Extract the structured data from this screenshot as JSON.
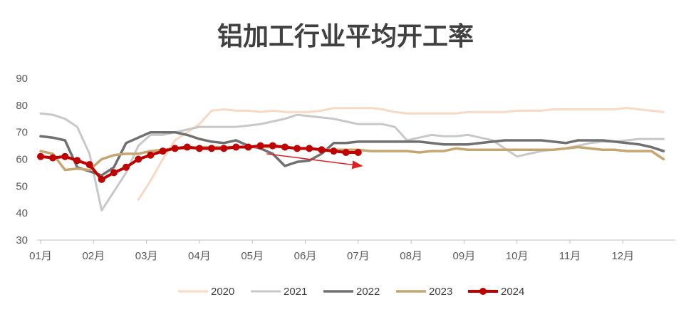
{
  "chart_data": {
    "type": "line",
    "title": "铝加工行业平均开工率",
    "xlabel": "",
    "ylabel": "",
    "ylim": [
      30,
      90
    ],
    "y_ticks": [
      30,
      40,
      50,
      60,
      70,
      80,
      90
    ],
    "x_ticks": [
      "01月",
      "02月",
      "03月",
      "04月",
      "05月",
      "06月",
      "07月",
      "08月",
      "09月",
      "10月",
      "11月",
      "12月"
    ],
    "x_range_weeks": [
      1,
      52
    ],
    "grid": false,
    "legend_position": "bottom",
    "annotation": "downward arrow from early May to early July (2024 trend)",
    "series": [
      {
        "name": "2020",
        "color": "#f8d9c4",
        "width": 3,
        "markers": false,
        "points": [
          [
            9,
            45
          ],
          [
            10,
            52
          ],
          [
            11,
            60
          ],
          [
            12,
            67
          ],
          [
            13,
            70
          ],
          [
            14,
            73
          ],
          [
            15,
            78
          ],
          [
            16,
            78.5
          ],
          [
            17,
            78
          ],
          [
            18,
            78
          ],
          [
            19,
            77.5
          ],
          [
            20,
            78
          ],
          [
            21,
            77.5
          ],
          [
            22,
            77.5
          ],
          [
            23,
            77.5
          ],
          [
            24,
            78
          ],
          [
            25,
            79
          ],
          [
            26,
            79
          ],
          [
            27,
            79
          ],
          [
            28,
            79
          ],
          [
            29,
            78.5
          ],
          [
            30,
            77.5
          ],
          [
            31,
            77
          ],
          [
            32,
            77
          ],
          [
            33,
            77
          ],
          [
            34,
            77
          ],
          [
            35,
            77
          ],
          [
            36,
            77.5
          ],
          [
            37,
            77.5
          ],
          [
            38,
            77.5
          ],
          [
            39,
            77.5
          ],
          [
            40,
            78
          ],
          [
            41,
            78
          ],
          [
            42,
            78
          ],
          [
            43,
            78.5
          ],
          [
            44,
            78.5
          ],
          [
            45,
            78.5
          ],
          [
            46,
            78.5
          ],
          [
            47,
            78.5
          ],
          [
            48,
            78.5
          ],
          [
            49,
            79
          ],
          [
            50,
            78.5
          ],
          [
            51,
            78
          ],
          [
            52,
            77.5
          ]
        ]
      },
      {
        "name": "2021",
        "color": "#c8c8c8",
        "width": 3,
        "markers": false,
        "points": [
          [
            1,
            77
          ],
          [
            2,
            76.5
          ],
          [
            3,
            75
          ],
          [
            4,
            72
          ],
          [
            5,
            62
          ],
          [
            6,
            41
          ],
          [
            7,
            48
          ],
          [
            8,
            55
          ],
          [
            9,
            65
          ],
          [
            10,
            69
          ],
          [
            11,
            69
          ],
          [
            12,
            70
          ],
          [
            13,
            71
          ],
          [
            14,
            72
          ],
          [
            15,
            72
          ],
          [
            16,
            72
          ],
          [
            17,
            72
          ],
          [
            18,
            72.5
          ],
          [
            19,
            73
          ],
          [
            20,
            74
          ],
          [
            21,
            75
          ],
          [
            22,
            76.5
          ],
          [
            23,
            76
          ],
          [
            24,
            75.5
          ],
          [
            25,
            75
          ],
          [
            26,
            74
          ],
          [
            27,
            73
          ],
          [
            28,
            73
          ],
          [
            29,
            73
          ],
          [
            30,
            72
          ],
          [
            31,
            67
          ],
          [
            32,
            68
          ],
          [
            33,
            69
          ],
          [
            34,
            68.5
          ],
          [
            35,
            68.5
          ],
          [
            36,
            69
          ],
          [
            37,
            68
          ],
          [
            38,
            67
          ],
          [
            39,
            64
          ],
          [
            40,
            61
          ],
          [
            41,
            62
          ],
          [
            42,
            63
          ],
          [
            43,
            63.5
          ],
          [
            44,
            64
          ],
          [
            45,
            65
          ],
          [
            46,
            66
          ],
          [
            47,
            66.5
          ],
          [
            48,
            66.5
          ],
          [
            49,
            67
          ],
          [
            50,
            67.5
          ],
          [
            51,
            67.5
          ],
          [
            52,
            67.5
          ]
        ]
      },
      {
        "name": "2022",
        "color": "#707070",
        "width": 3.5,
        "markers": false,
        "points": [
          [
            1,
            68.5
          ],
          [
            2,
            68
          ],
          [
            3,
            67
          ],
          [
            4,
            57
          ],
          [
            5,
            55.5
          ],
          [
            6,
            54
          ],
          [
            7,
            57
          ],
          [
            8,
            66
          ],
          [
            9,
            68
          ],
          [
            10,
            70
          ],
          [
            11,
            70
          ],
          [
            12,
            70
          ],
          [
            13,
            69
          ],
          [
            14,
            67.5
          ],
          [
            15,
            66.5
          ],
          [
            16,
            66
          ],
          [
            17,
            67
          ],
          [
            18,
            65
          ],
          [
            19,
            64
          ],
          [
            20,
            62
          ],
          [
            21,
            57.5
          ],
          [
            22,
            59
          ],
          [
            23,
            59.5
          ],
          [
            24,
            62
          ],
          [
            25,
            66
          ],
          [
            26,
            66
          ],
          [
            27,
            66.5
          ],
          [
            28,
            66.5
          ],
          [
            29,
            66.5
          ],
          [
            30,
            66.5
          ],
          [
            31,
            66.5
          ],
          [
            32,
            66.5
          ],
          [
            33,
            66
          ],
          [
            34,
            65.5
          ],
          [
            35,
            65.5
          ],
          [
            36,
            65.5
          ],
          [
            37,
            66
          ],
          [
            38,
            66.5
          ],
          [
            39,
            67
          ],
          [
            40,
            67
          ],
          [
            41,
            67
          ],
          [
            42,
            67
          ],
          [
            43,
            66.5
          ],
          [
            44,
            66
          ],
          [
            45,
            67
          ],
          [
            46,
            67
          ],
          [
            47,
            67
          ],
          [
            48,
            66.5
          ],
          [
            49,
            66
          ],
          [
            50,
            65.5
          ],
          [
            51,
            64.5
          ],
          [
            52,
            63
          ]
        ]
      },
      {
        "name": "2023",
        "color": "#c6a670",
        "width": 3.5,
        "markers": false,
        "points": [
          [
            1,
            63
          ],
          [
            2,
            62
          ],
          [
            3,
            56
          ],
          [
            4,
            56.5
          ],
          [
            5,
            56
          ],
          [
            6,
            60
          ],
          [
            7,
            61.5
          ],
          [
            8,
            62
          ],
          [
            9,
            62
          ],
          [
            10,
            63
          ],
          [
            11,
            63.5
          ],
          [
            12,
            64
          ],
          [
            13,
            64
          ],
          [
            14,
            64.5
          ],
          [
            15,
            64.5
          ],
          [
            16,
            64.5
          ],
          [
            17,
            64.5
          ],
          [
            18,
            64.5
          ],
          [
            19,
            64.5
          ],
          [
            20,
            64.5
          ],
          [
            21,
            64.5
          ],
          [
            22,
            64
          ],
          [
            23,
            64
          ],
          [
            24,
            63.5
          ],
          [
            25,
            63.5
          ],
          [
            26,
            63.5
          ],
          [
            27,
            63.5
          ],
          [
            28,
            63
          ],
          [
            29,
            63
          ],
          [
            30,
            63
          ],
          [
            31,
            63
          ],
          [
            32,
            62.5
          ],
          [
            33,
            63
          ],
          [
            34,
            63
          ],
          [
            35,
            64
          ],
          [
            36,
            63.5
          ],
          [
            37,
            63.5
          ],
          [
            38,
            63.5
          ],
          [
            39,
            63.5
          ],
          [
            40,
            63.5
          ],
          [
            41,
            63.5
          ],
          [
            42,
            63.5
          ],
          [
            43,
            63.5
          ],
          [
            44,
            64
          ],
          [
            45,
            64.5
          ],
          [
            46,
            64
          ],
          [
            47,
            63.5
          ],
          [
            48,
            63.5
          ],
          [
            49,
            63
          ],
          [
            50,
            63
          ],
          [
            51,
            63
          ],
          [
            52,
            60
          ]
        ]
      },
      {
        "name": "2024",
        "color": "#c00000",
        "width": 4,
        "markers": true,
        "points": [
          [
            1,
            61
          ],
          [
            2,
            60.5
          ],
          [
            3,
            61
          ],
          [
            4,
            59.5
          ],
          [
            5,
            58
          ],
          [
            6,
            52.5
          ],
          [
            7,
            55
          ],
          [
            8,
            57
          ],
          [
            9,
            60
          ],
          [
            10,
            61.5
          ],
          [
            11,
            63
          ],
          [
            12,
            64
          ],
          [
            13,
            64.5
          ],
          [
            14,
            64
          ],
          [
            15,
            64
          ],
          [
            16,
            64
          ],
          [
            17,
            64.5
          ],
          [
            18,
            64.5
          ],
          [
            19,
            65
          ],
          [
            20,
            65
          ],
          [
            21,
            64.5
          ],
          [
            22,
            64
          ],
          [
            23,
            64
          ],
          [
            24,
            63.5
          ],
          [
            25,
            63
          ],
          [
            26,
            62.5
          ],
          [
            27,
            62.5
          ]
        ]
      }
    ]
  }
}
